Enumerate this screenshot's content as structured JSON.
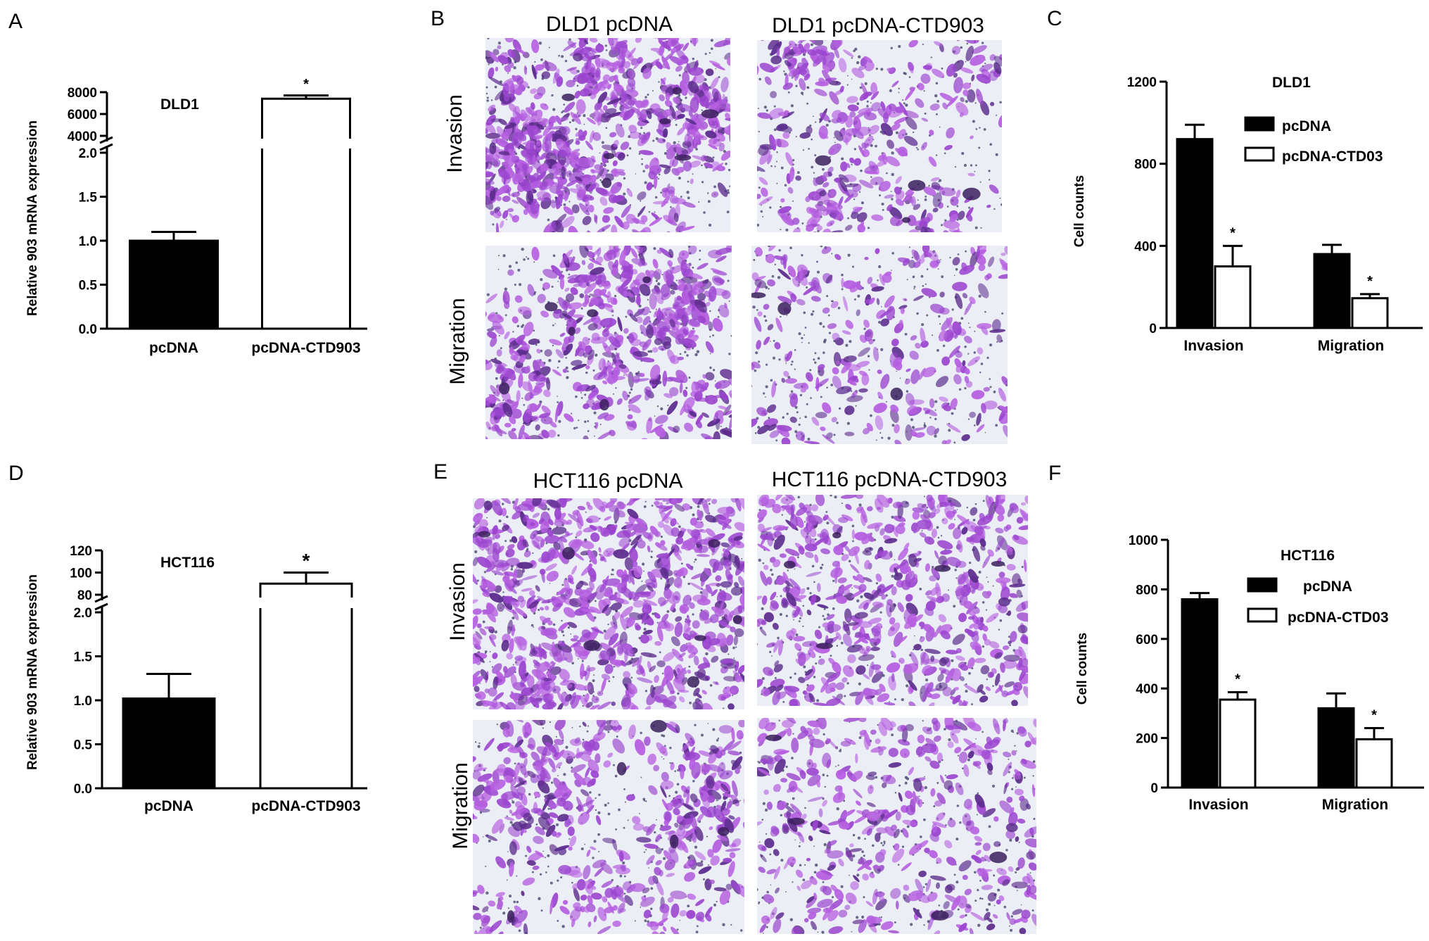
{
  "panel_letters": [
    "A",
    "B",
    "C",
    "D",
    "E",
    "F"
  ],
  "chart_data": [
    {
      "id": "A",
      "type": "bar",
      "title": "DLD1",
      "ylabel": "Relative 903 mRNA expression",
      "categories": [
        "pcDNA",
        "pcDNA-CTD903"
      ],
      "values": [
        1.0,
        7400
      ],
      "errors": [
        0.1,
        300
      ],
      "fills": [
        "#000000",
        "#ffffff"
      ],
      "significance": [
        "",
        "*"
      ],
      "axis_break": true,
      "lower_ylim": [
        0,
        2.0
      ],
      "lower_ticks": [
        "0.0",
        "0.5",
        "1.0",
        "1.5",
        "2.0"
      ],
      "upper_ylim": [
        4000,
        8000
      ],
      "upper_ticks": [
        "4000",
        "6000",
        "8000"
      ]
    },
    {
      "id": "C",
      "type": "bar",
      "title": "DLD1",
      "ylabel": "Cell counts",
      "categories": [
        "Invasion",
        "Migration"
      ],
      "series": [
        {
          "name": "pcDNA",
          "values": [
            920,
            360
          ],
          "errors": [
            70,
            45
          ],
          "color": "#000000"
        },
        {
          "name": "pcDNA-CTD03",
          "values": [
            300,
            145
          ],
          "errors": [
            100,
            20
          ],
          "color": "#ffffff"
        }
      ],
      "significance": [
        [
          "",
          "*"
        ],
        [
          "",
          "*"
        ]
      ],
      "ylim": [
        0,
        1200
      ],
      "ticks": [
        "0",
        "400",
        "800",
        "1200"
      ],
      "legend": "top-right"
    },
    {
      "id": "D",
      "type": "bar",
      "title": "HCT116",
      "ylabel": "Relative 903 mRNA expression",
      "categories": [
        "pcDNA",
        "pcDNA-CTD903"
      ],
      "values": [
        1.02,
        90
      ],
      "errors": [
        0.28,
        10
      ],
      "fills": [
        "#000000",
        "#ffffff"
      ],
      "significance": [
        "",
        "*"
      ],
      "axis_break": true,
      "lower_ylim": [
        0,
        2.0
      ],
      "lower_ticks": [
        "0.0",
        "0.5",
        "1.0",
        "1.5",
        "2.0"
      ],
      "upper_ylim": [
        80,
        120
      ],
      "upper_ticks": [
        "80",
        "100",
        "120"
      ]
    },
    {
      "id": "F",
      "type": "bar",
      "title": "HCT116",
      "ylabel": "Cell counts",
      "categories": [
        "Invasion",
        "Migration"
      ],
      "series": [
        {
          "name": "pcDNA",
          "values": [
            760,
            320
          ],
          "errors": [
            25,
            60
          ],
          "color": "#000000"
        },
        {
          "name": "pcDNA-CTD03",
          "values": [
            355,
            195
          ],
          "errors": [
            30,
            45
          ],
          "color": "#ffffff"
        }
      ],
      "significance": [
        [
          "",
          "*"
        ],
        [
          "",
          "*"
        ]
      ],
      "ylim": [
        0,
        1000
      ],
      "ticks": [
        "0",
        "200",
        "400",
        "600",
        "800",
        "1000"
      ],
      "legend": "top-right"
    }
  ],
  "micrographs": {
    "B": {
      "col_titles": [
        "DLD1 pcDNA",
        "DLD1 pcDNA-CTD903"
      ],
      "row_labels": [
        "Invasion",
        "Migration"
      ],
      "densities": [
        [
          0.85,
          0.35
        ],
        [
          0.6,
          0.18
        ]
      ]
    },
    "E": {
      "col_titles": [
        "HCT116  pcDNA",
        "HCT116 pcDNA-CTD903"
      ],
      "row_labels": [
        "Invasion",
        "Migration"
      ],
      "densities": [
        [
          0.8,
          0.55
        ],
        [
          0.5,
          0.35
        ]
      ]
    }
  },
  "colors": {
    "stain": "#a14ad0",
    "stain_dark": "#5a2f85",
    "background": "#eef0f6"
  }
}
